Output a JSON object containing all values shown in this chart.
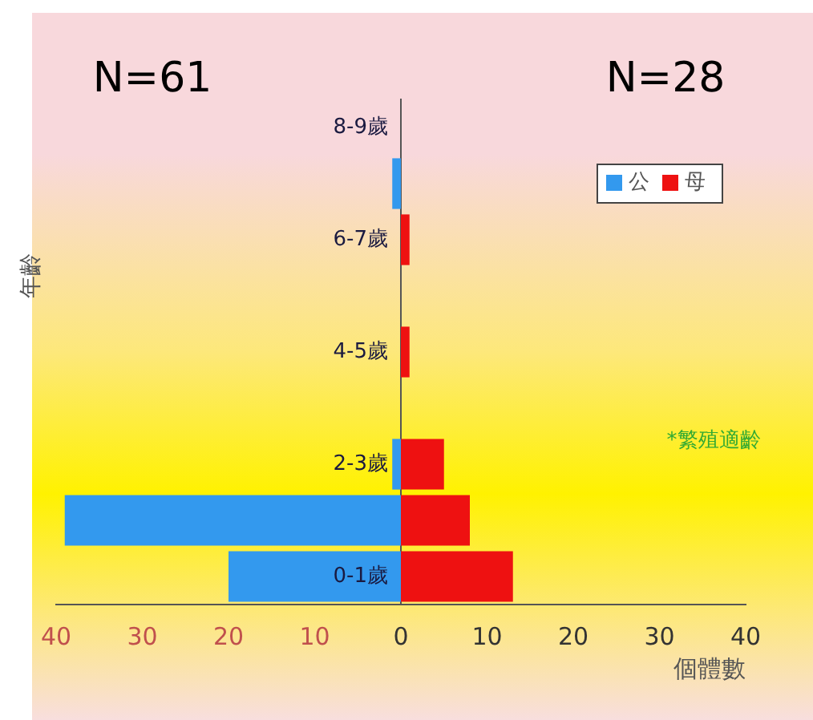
{
  "chart_data": {
    "type": "bar",
    "orientation": "horizontal",
    "stacked": true,
    "categories": [
      "8-9歲",
      null,
      "6-7歲",
      null,
      "4-5歲",
      null,
      "2-3歲",
      null,
      "0-1歲"
    ],
    "series": [
      {
        "name": "公",
        "color": "#3399ee",
        "values": [
          0,
          -1,
          0,
          0,
          0,
          0,
          -1,
          -39,
          -20
        ]
      },
      {
        "name": "母",
        "color": "#ee1111",
        "values": [
          0,
          0,
          1,
          0,
          1,
          0,
          5,
          8,
          13
        ]
      }
    ],
    "xlim": [
      -40,
      40
    ],
    "xticks": [
      {
        "value": -40,
        "label": "40"
      },
      {
        "value": -30,
        "label": "30"
      },
      {
        "value": -20,
        "label": "20"
      },
      {
        "value": -10,
        "label": "10"
      },
      0,
      10,
      20,
      30,
      40
    ],
    "xlabel": "個體數",
    "ylabel": "年齡",
    "annotations": [
      "N=61",
      "N=28",
      "*繁殖適齡"
    ],
    "grid": false,
    "legend": "top right"
  }
}
